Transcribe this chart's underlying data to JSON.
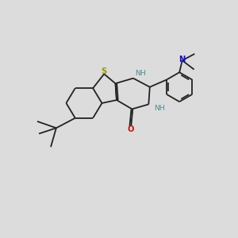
{
  "background_color": "#dcdcdc",
  "bond_color": "#222222",
  "S_color": "#999900",
  "N_teal_color": "#4a9090",
  "N_blue_color": "#1010cc",
  "O_color": "#cc1010",
  "bond_width": 1.3,
  "figsize": [
    3.0,
    3.0
  ],
  "dpi": 100,
  "xlim": [
    0,
    10
  ],
  "ylim": [
    0,
    10
  ]
}
